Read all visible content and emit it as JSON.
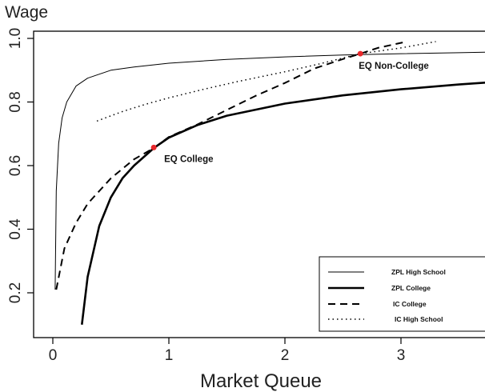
{
  "chart_data": {
    "type": "line",
    "ylabel": "Wage",
    "xlabel": "Market Queue",
    "xlim": [
      -0.1,
      3.8
    ],
    "ylim": [
      0.1,
      1.02
    ],
    "x_ticks": [
      0,
      1,
      2,
      3
    ],
    "x_tick_labels": [
      "0",
      "1",
      "2",
      "3"
    ],
    "y_ticks": [
      0.2,
      0.4,
      0.6,
      0.8,
      1.0
    ],
    "y_tick_labels": [
      "0.2",
      "0.4",
      "0.6",
      "0.8",
      "1.0"
    ],
    "grid": false,
    "legend_position": "bottom-right",
    "series": [
      {
        "name": "ZPL High School",
        "style": "solid-thin",
        "x": [
          0.02,
          0.03,
          0.05,
          0.08,
          0.12,
          0.2,
          0.3,
          0.5,
          0.7,
          1.0,
          1.5,
          2.0,
          2.5,
          3.0,
          3.5,
          3.8
        ],
        "y": [
          0.21,
          0.52,
          0.67,
          0.75,
          0.8,
          0.85,
          0.875,
          0.9,
          0.91,
          0.922,
          0.934,
          0.942,
          0.948,
          0.952,
          0.955,
          0.957
        ]
      },
      {
        "name": "ZPL College",
        "style": "solid-thick",
        "x": [
          0.25,
          0.3,
          0.4,
          0.5,
          0.6,
          0.7,
          0.87,
          1.0,
          1.25,
          1.5,
          2.0,
          2.5,
          3.0,
          3.5,
          3.8
        ],
        "y": [
          0.1,
          0.25,
          0.41,
          0.5,
          0.56,
          0.6,
          0.655,
          0.688,
          0.728,
          0.757,
          0.795,
          0.821,
          0.84,
          0.855,
          0.863
        ]
      },
      {
        "name": "IC College",
        "style": "dashed",
        "x": [
          0.03,
          0.1,
          0.2,
          0.3,
          0.5,
          0.7,
          0.87,
          1.0,
          1.25,
          1.5,
          1.75,
          2.0,
          2.25,
          2.5,
          2.65,
          2.8,
          3.05
        ],
        "y": [
          0.21,
          0.34,
          0.42,
          0.48,
          0.56,
          0.62,
          0.655,
          0.69,
          0.73,
          0.775,
          0.82,
          0.86,
          0.905,
          0.935,
          0.952,
          0.97,
          0.99
        ]
      },
      {
        "name": "IC High School",
        "style": "dotted",
        "x": [
          0.38,
          0.6,
          0.8,
          1.0,
          1.3,
          1.6,
          2.0,
          2.3,
          2.65,
          3.0,
          3.3
        ],
        "y": [
          0.74,
          0.77,
          0.793,
          0.813,
          0.84,
          0.865,
          0.895,
          0.92,
          0.952,
          0.97,
          0.99
        ]
      }
    ],
    "points": [
      {
        "label": "EQ College",
        "x": 0.87,
        "y": 0.657,
        "color": "#e8282b"
      },
      {
        "label": "EQ Non-College",
        "x": 2.65,
        "y": 0.952,
        "color": "#e8282b"
      }
    ]
  }
}
